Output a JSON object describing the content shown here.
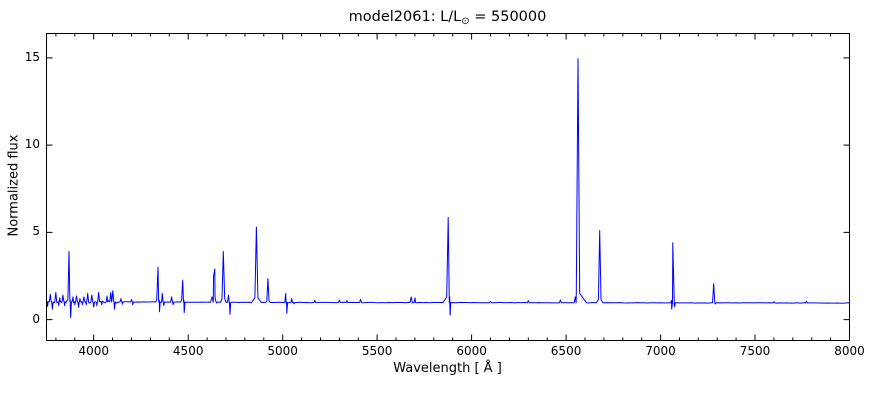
{
  "figure": {
    "title_prefix": "model2061: L/L",
    "title_sub": "⊙",
    "title_suffix": " = 550000"
  },
  "chart_data": {
    "type": "line",
    "title": "model2061: L/L⊙ = 550000",
    "xlabel": "Wavelength [ Å ]",
    "ylabel": "Normalized flux",
    "xlim": [
      3750,
      8000
    ],
    "ylim": [
      -1.2,
      16.4
    ],
    "xticks": [
      4000,
      4500,
      5000,
      5500,
      6000,
      6500,
      7000,
      7500,
      8000
    ],
    "xtick_minor_step": 100,
    "yticks": [
      0,
      5,
      10,
      15
    ],
    "grid": false,
    "legend": "none",
    "line_color": "#0000ff",
    "axis_color": "#000000",
    "continuum_nodes": [
      [
        3750,
        1.02
      ],
      [
        4500,
        1.0
      ],
      [
        5000,
        0.98
      ],
      [
        6000,
        0.97
      ],
      [
        7000,
        0.96
      ],
      [
        8000,
        0.95
      ]
    ],
    "noise_regions": [
      {
        "from": 3750,
        "to": 4150,
        "amp": 0.07,
        "step": 8
      },
      {
        "from": 4150,
        "to": 8000,
        "amp": 0.012,
        "step": 18
      }
    ],
    "emission_lines": [
      {
        "wavelength": 3770,
        "peak_flux": 1.45,
        "half_width": 5
      },
      {
        "wavelength": 3799,
        "peak_flux": 1.55,
        "half_width": 5
      },
      {
        "wavelength": 3820,
        "peak_flux": 1.25,
        "half_width": 4
      },
      {
        "wavelength": 3837,
        "peak_flux": 1.4,
        "half_width": 5
      },
      {
        "wavelength": 3869,
        "peak_flux": 3.9,
        "half_width": 6,
        "wing": {
          "dw": 14,
          "flux": 1.15
        }
      },
      {
        "wavelength": 3890,
        "peak_flux": 1.3,
        "half_width": 4
      },
      {
        "wavelength": 3909,
        "peak_flux": 1.35,
        "half_width": 5
      },
      {
        "wavelength": 3927,
        "peak_flux": 1.2,
        "half_width": 4
      },
      {
        "wavelength": 3948,
        "peak_flux": 1.3,
        "half_width": 5
      },
      {
        "wavelength": 3968,
        "peak_flux": 1.5,
        "half_width": 5
      },
      {
        "wavelength": 3990,
        "peak_flux": 1.4,
        "half_width": 5
      },
      {
        "wavelength": 4026,
        "peak_flux": 1.55,
        "half_width": 5
      },
      {
        "wavelength": 4070,
        "peak_flux": 1.35,
        "half_width": 4
      },
      {
        "wavelength": 4090,
        "peak_flux": 1.55,
        "half_width": 5
      },
      {
        "wavelength": 4101,
        "peak_flux": 1.65,
        "half_width": 6
      },
      {
        "wavelength": 4144,
        "peak_flux": 1.2,
        "half_width": 5
      },
      {
        "wavelength": 4200,
        "peak_flux": 1.15,
        "half_width": 5
      },
      {
        "wavelength": 4340,
        "peak_flux": 3.0,
        "half_width": 7,
        "wing": {
          "dw": 14,
          "flux": 1.1
        }
      },
      {
        "wavelength": 4363,
        "peak_flux": 1.5,
        "half_width": 4
      },
      {
        "wavelength": 4412,
        "peak_flux": 1.3,
        "half_width": 5
      },
      {
        "wavelength": 4471,
        "peak_flux": 2.25,
        "half_width": 6,
        "wing": {
          "dw": 12,
          "flux": 1.1
        }
      },
      {
        "wavelength": 4634,
        "peak_flux": 2.45,
        "half_width": 8,
        "wing": {
          "dw": 16,
          "flux": 1.3
        }
      },
      {
        "wavelength": 4641,
        "peak_flux": 2.9,
        "half_width": 8
      },
      {
        "wavelength": 4686,
        "peak_flux": 3.9,
        "half_width": 7,
        "wing": {
          "dw": 14,
          "flux": 1.2
        }
      },
      {
        "wavelength": 4713,
        "peak_flux": 1.4,
        "half_width": 5
      },
      {
        "wavelength": 4861,
        "peak_flux": 5.3,
        "half_width": 8,
        "wing": {
          "dw": 25,
          "flux": 1.25
        }
      },
      {
        "wavelength": 4922,
        "peak_flux": 2.35,
        "half_width": 6,
        "wing": {
          "dw": 12,
          "flux": 1.05
        }
      },
      {
        "wavelength": 5016,
        "peak_flux": 1.5,
        "half_width": 5
      },
      {
        "wavelength": 5048,
        "peak_flux": 1.2,
        "half_width": 4
      },
      {
        "wavelength": 5170,
        "peak_flux": 1.1,
        "half_width": 5
      },
      {
        "wavelength": 5300,
        "peak_flux": 1.12,
        "half_width": 5
      },
      {
        "wavelength": 5340,
        "peak_flux": 1.08,
        "half_width": 4
      },
      {
        "wavelength": 5412,
        "peak_flux": 1.15,
        "half_width": 5
      },
      {
        "wavelength": 5680,
        "peak_flux": 1.3,
        "half_width": 6
      },
      {
        "wavelength": 5700,
        "peak_flux": 1.25,
        "half_width": 4
      },
      {
        "wavelength": 5876,
        "peak_flux": 5.85,
        "half_width": 8,
        "wing": {
          "dw": 28,
          "flux": 1.3
        }
      },
      {
        "wavelength": 6100,
        "peak_flux": 1.05,
        "half_width": 5
      },
      {
        "wavelength": 6300,
        "peak_flux": 1.08,
        "half_width": 5
      },
      {
        "wavelength": 6470,
        "peak_flux": 1.12,
        "half_width": 5
      },
      {
        "wavelength": 6548,
        "peak_flux": 1.3,
        "half_width": 5
      },
      {
        "wavelength": 6563,
        "peak_flux": 14.95,
        "half_width": 9,
        "wing": {
          "dw": 45,
          "flux": 1.5
        }
      },
      {
        "wavelength": 6678,
        "peak_flux": 5.1,
        "half_width": 7,
        "wing": {
          "dw": 18,
          "flux": 1.15
        }
      },
      {
        "wavelength": 7065,
        "peak_flux": 4.4,
        "half_width": 7,
        "wing": {
          "dw": 16,
          "flux": 1.1
        }
      },
      {
        "wavelength": 7281,
        "peak_flux": 2.05,
        "half_width": 6
      },
      {
        "wavelength": 7600,
        "peak_flux": 1.03,
        "half_width": 5
      },
      {
        "wavelength": 7772,
        "peak_flux": 1.05,
        "half_width": 5
      }
    ],
    "absorption_dips": [
      {
        "wavelength": 3756,
        "min_flux": 0.75,
        "half_width": 3
      },
      {
        "wavelength": 3781,
        "min_flux": 0.6,
        "half_width": 4
      },
      {
        "wavelength": 3815,
        "min_flux": 0.8,
        "half_width": 3
      },
      {
        "wavelength": 3846,
        "min_flux": 0.8,
        "half_width": 3
      },
      {
        "wavelength": 3878,
        "min_flux": 0.12,
        "half_width": 4
      },
      {
        "wavelength": 3900,
        "min_flux": 0.85,
        "half_width": 3
      },
      {
        "wavelength": 3920,
        "min_flux": 0.7,
        "half_width": 4
      },
      {
        "wavelength": 3940,
        "min_flux": 0.85,
        "half_width": 3
      },
      {
        "wavelength": 3960,
        "min_flux": 0.85,
        "half_width": 3
      },
      {
        "wavelength": 4000,
        "min_flux": 0.72,
        "half_width": 4
      },
      {
        "wavelength": 4016,
        "min_flux": 0.8,
        "half_width": 3
      },
      {
        "wavelength": 4042,
        "min_flux": 0.85,
        "half_width": 3
      },
      {
        "wavelength": 4110,
        "min_flux": 0.6,
        "half_width": 4
      },
      {
        "wavelength": 4152,
        "min_flux": 0.88,
        "half_width": 3
      },
      {
        "wavelength": 4207,
        "min_flux": 0.85,
        "half_width": 3
      },
      {
        "wavelength": 4348,
        "min_flux": 0.45,
        "half_width": 4
      },
      {
        "wavelength": 4371,
        "min_flux": 0.8,
        "half_width": 3
      },
      {
        "wavelength": 4420,
        "min_flux": 0.85,
        "half_width": 3
      },
      {
        "wavelength": 4479,
        "min_flux": 0.4,
        "half_width": 4
      },
      {
        "wavelength": 4650,
        "min_flux": 0.95,
        "half_width": 3
      },
      {
        "wavelength": 4721,
        "min_flux": 0.3,
        "half_width": 4
      },
      {
        "wavelength": 5022,
        "min_flux": 0.35,
        "half_width": 4
      },
      {
        "wavelength": 5060,
        "min_flux": 0.9,
        "half_width": 3
      },
      {
        "wavelength": 5886,
        "min_flux": 0.25,
        "half_width": 4
      },
      {
        "wavelength": 7059,
        "min_flux": 0.6,
        "half_width": 4
      },
      {
        "wavelength": 7075,
        "min_flux": 0.75,
        "half_width": 3
      },
      {
        "wavelength": 7290,
        "min_flux": 0.9,
        "half_width": 3
      }
    ]
  }
}
